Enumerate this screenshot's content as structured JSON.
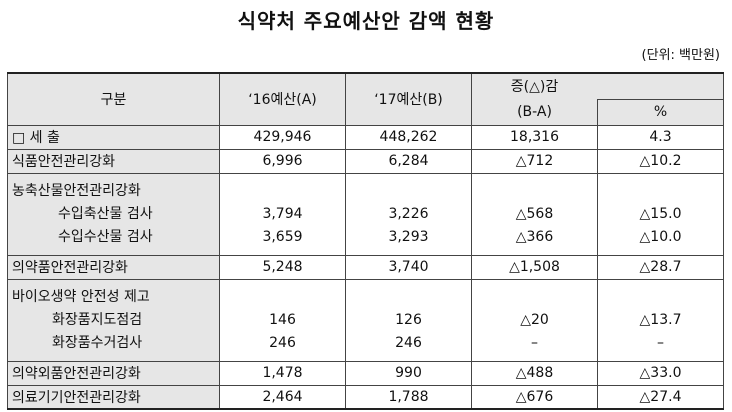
{
  "title": "식약처 주요예산안 감액 현황",
  "unit": "(단위: 백만원)",
  "headers": {
    "category": "구분",
    "y16": "‘16예산(A)",
    "y17": "‘17예산(B)",
    "change": "증(△)감",
    "change_ba": "(B-A)",
    "percent": "%"
  },
  "rows": {
    "total": {
      "label": "□ 세   출",
      "a": "429,946",
      "b": "448,262",
      "diff": "18,316",
      "pct": "4.3"
    },
    "food": {
      "label": "식품안전관리강화",
      "a": "6,996",
      "b": "6,284",
      "diff": "△712",
      "pct": "△10.2"
    },
    "agri": {
      "label": "농축산물안전관리강화",
      "sub1": {
        "label": "수입축산물 검사",
        "a": "3,794",
        "b": "3,226",
        "diff": "△568",
        "pct": "△15.0"
      },
      "sub2": {
        "label": "수입수산물 검사",
        "a": "3,659",
        "b": "3,293",
        "diff": "△366",
        "pct": "△10.0"
      }
    },
    "drug": {
      "label": "의약품안전관리강화",
      "a": "5,248",
      "b": "3,740",
      "diff": "△1,508",
      "pct": "△28.7"
    },
    "bio": {
      "label": "바이오생약 안전성 제고",
      "sub1": {
        "label": "화장품지도점검",
        "a": "146",
        "b": "126",
        "diff": "△20",
        "pct": "△13.7"
      },
      "sub2": {
        "label": "화장품수거검사",
        "a": "246",
        "b": "246",
        "diff": "–",
        "pct": "–"
      }
    },
    "quasi": {
      "label": "의약외품안전관리강화",
      "a": "1,478",
      "b": "990",
      "diff": "△488",
      "pct": "△33.0"
    },
    "device": {
      "label": "의료기기안전관리강화",
      "a": "2,464",
      "b": "1,788",
      "diff": "△676",
      "pct": "△27.4"
    }
  }
}
